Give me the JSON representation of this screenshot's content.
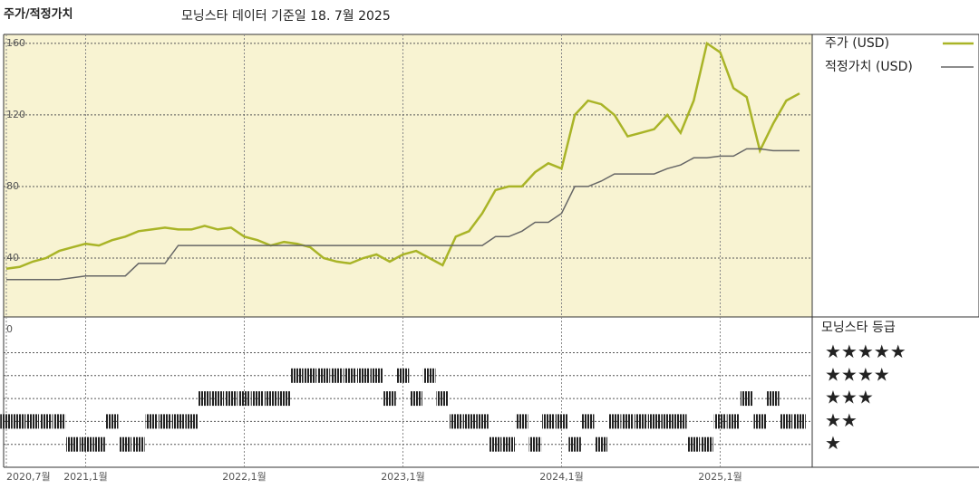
{
  "chart_data": [
    {
      "type": "line",
      "title": "주가/적정가치",
      "subtitle": "모닝스타 데이터 기준일 18. 7월 2025",
      "x": [
        "2020-07",
        "2020-08",
        "2020-09",
        "2020-10",
        "2020-11",
        "2020-12",
        "2021-01",
        "2021-02",
        "2021-03",
        "2021-04",
        "2021-05",
        "2021-06",
        "2021-07",
        "2021-08",
        "2021-09",
        "2021-10",
        "2021-11",
        "2021-12",
        "2022-01",
        "2022-02",
        "2022-03",
        "2022-04",
        "2022-05",
        "2022-06",
        "2022-07",
        "2022-08",
        "2022-09",
        "2022-10",
        "2022-11",
        "2022-12",
        "2023-01",
        "2023-02",
        "2023-03",
        "2023-04",
        "2023-05",
        "2023-06",
        "2023-07",
        "2023-08",
        "2023-09",
        "2023-10",
        "2023-11",
        "2023-12",
        "2024-01",
        "2024-02",
        "2024-03",
        "2024-04",
        "2024-05",
        "2024-06",
        "2024-07",
        "2024-08",
        "2024-09",
        "2024-10",
        "2024-11",
        "2024-12",
        "2025-01",
        "2025-02",
        "2025-03",
        "2025-04",
        "2025-05",
        "2025-06",
        "2025-07"
      ],
      "series": [
        {
          "name": "주가 (USD)",
          "color": "#a9b427",
          "values": [
            34,
            35,
            38,
            40,
            44,
            46,
            48,
            47,
            50,
            52,
            55,
            56,
            57,
            56,
            56,
            58,
            56,
            57,
            52,
            50,
            47,
            49,
            48,
            46,
            40,
            38,
            37,
            40,
            42,
            38,
            42,
            44,
            40,
            36,
            52,
            55,
            65,
            78,
            80,
            80,
            88,
            93,
            90,
            120,
            128,
            126,
            120,
            108,
            110,
            112,
            120,
            110,
            128,
            160,
            155,
            135,
            130,
            100,
            115,
            128,
            132
          ]
        },
        {
          "name": "적정가치 (USD)",
          "color": "#666666",
          "values": [
            28,
            28,
            28,
            28,
            28,
            29,
            30,
            30,
            30,
            30,
            37,
            37,
            37,
            47,
            47,
            47,
            47,
            47,
            47,
            47,
            47,
            47,
            47,
            47,
            47,
            47,
            47,
            47,
            47,
            47,
            47,
            47,
            47,
            47,
            47,
            47,
            47,
            52,
            52,
            55,
            60,
            60,
            65,
            80,
            80,
            83,
            87,
            87,
            87,
            87,
            90,
            92,
            96,
            96,
            97,
            97,
            101,
            101,
            100,
            100,
            100
          ]
        }
      ],
      "xlim": [
        "2020-07",
        "2025-07"
      ],
      "xticks": [
        {
          "value": "2020-07",
          "label": "2020,7월"
        },
        {
          "value": "2021-01",
          "label": "2021,1월"
        },
        {
          "value": "2022-01",
          "label": "2022,1월"
        },
        {
          "value": "2023-01",
          "label": "2023,1월"
        },
        {
          "value": "2024-01",
          "label": "2024,1월"
        },
        {
          "value": "2025-01",
          "label": "2025,1월"
        }
      ],
      "ylim": [
        0,
        165
      ],
      "yticks": [
        0,
        40,
        80,
        120,
        160
      ],
      "grid": true
    },
    {
      "type": "rating",
      "title": "모닝스타 등급",
      "levels": [
        "★",
        "★★",
        "★★★",
        "★★★★",
        "★★★★★"
      ],
      "x": [
        "2020-07",
        "2020-08",
        "2020-09",
        "2020-10",
        "2020-11",
        "2020-12",
        "2021-01",
        "2021-02",
        "2021-03",
        "2021-04",
        "2021-05",
        "2021-06",
        "2021-07",
        "2021-08",
        "2021-09",
        "2021-10",
        "2021-11",
        "2021-12",
        "2022-01",
        "2022-02",
        "2022-03",
        "2022-04",
        "2022-05",
        "2022-06",
        "2022-07",
        "2022-08",
        "2022-09",
        "2022-10",
        "2022-11",
        "2022-12",
        "2023-01",
        "2023-02",
        "2023-03",
        "2023-04",
        "2023-05",
        "2023-06",
        "2023-07",
        "2023-08",
        "2023-09",
        "2023-10",
        "2023-11",
        "2023-12",
        "2024-01",
        "2024-02",
        "2024-03",
        "2024-04",
        "2024-05",
        "2024-06",
        "2024-07",
        "2024-08",
        "2024-09",
        "2024-10",
        "2024-11",
        "2024-12",
        "2025-01",
        "2025-02",
        "2025-03",
        "2025-04",
        "2025-05",
        "2025-06",
        "2025-07"
      ],
      "values": [
        2,
        2,
        2,
        2,
        2,
        1,
        1,
        1,
        2,
        1,
        1,
        2,
        2,
        2,
        2,
        3,
        3,
        3,
        3,
        3,
        3,
        3,
        4,
        4,
        4,
        4,
        4,
        4,
        4,
        3,
        4,
        3,
        4,
        3,
        2,
        2,
        2,
        1,
        1,
        2,
        1,
        2,
        2,
        1,
        2,
        1,
        2,
        2,
        2,
        2,
        2,
        2,
        1,
        1,
        2,
        2,
        3,
        2,
        3,
        2,
        2
      ],
      "color": "#222222"
    }
  ]
}
